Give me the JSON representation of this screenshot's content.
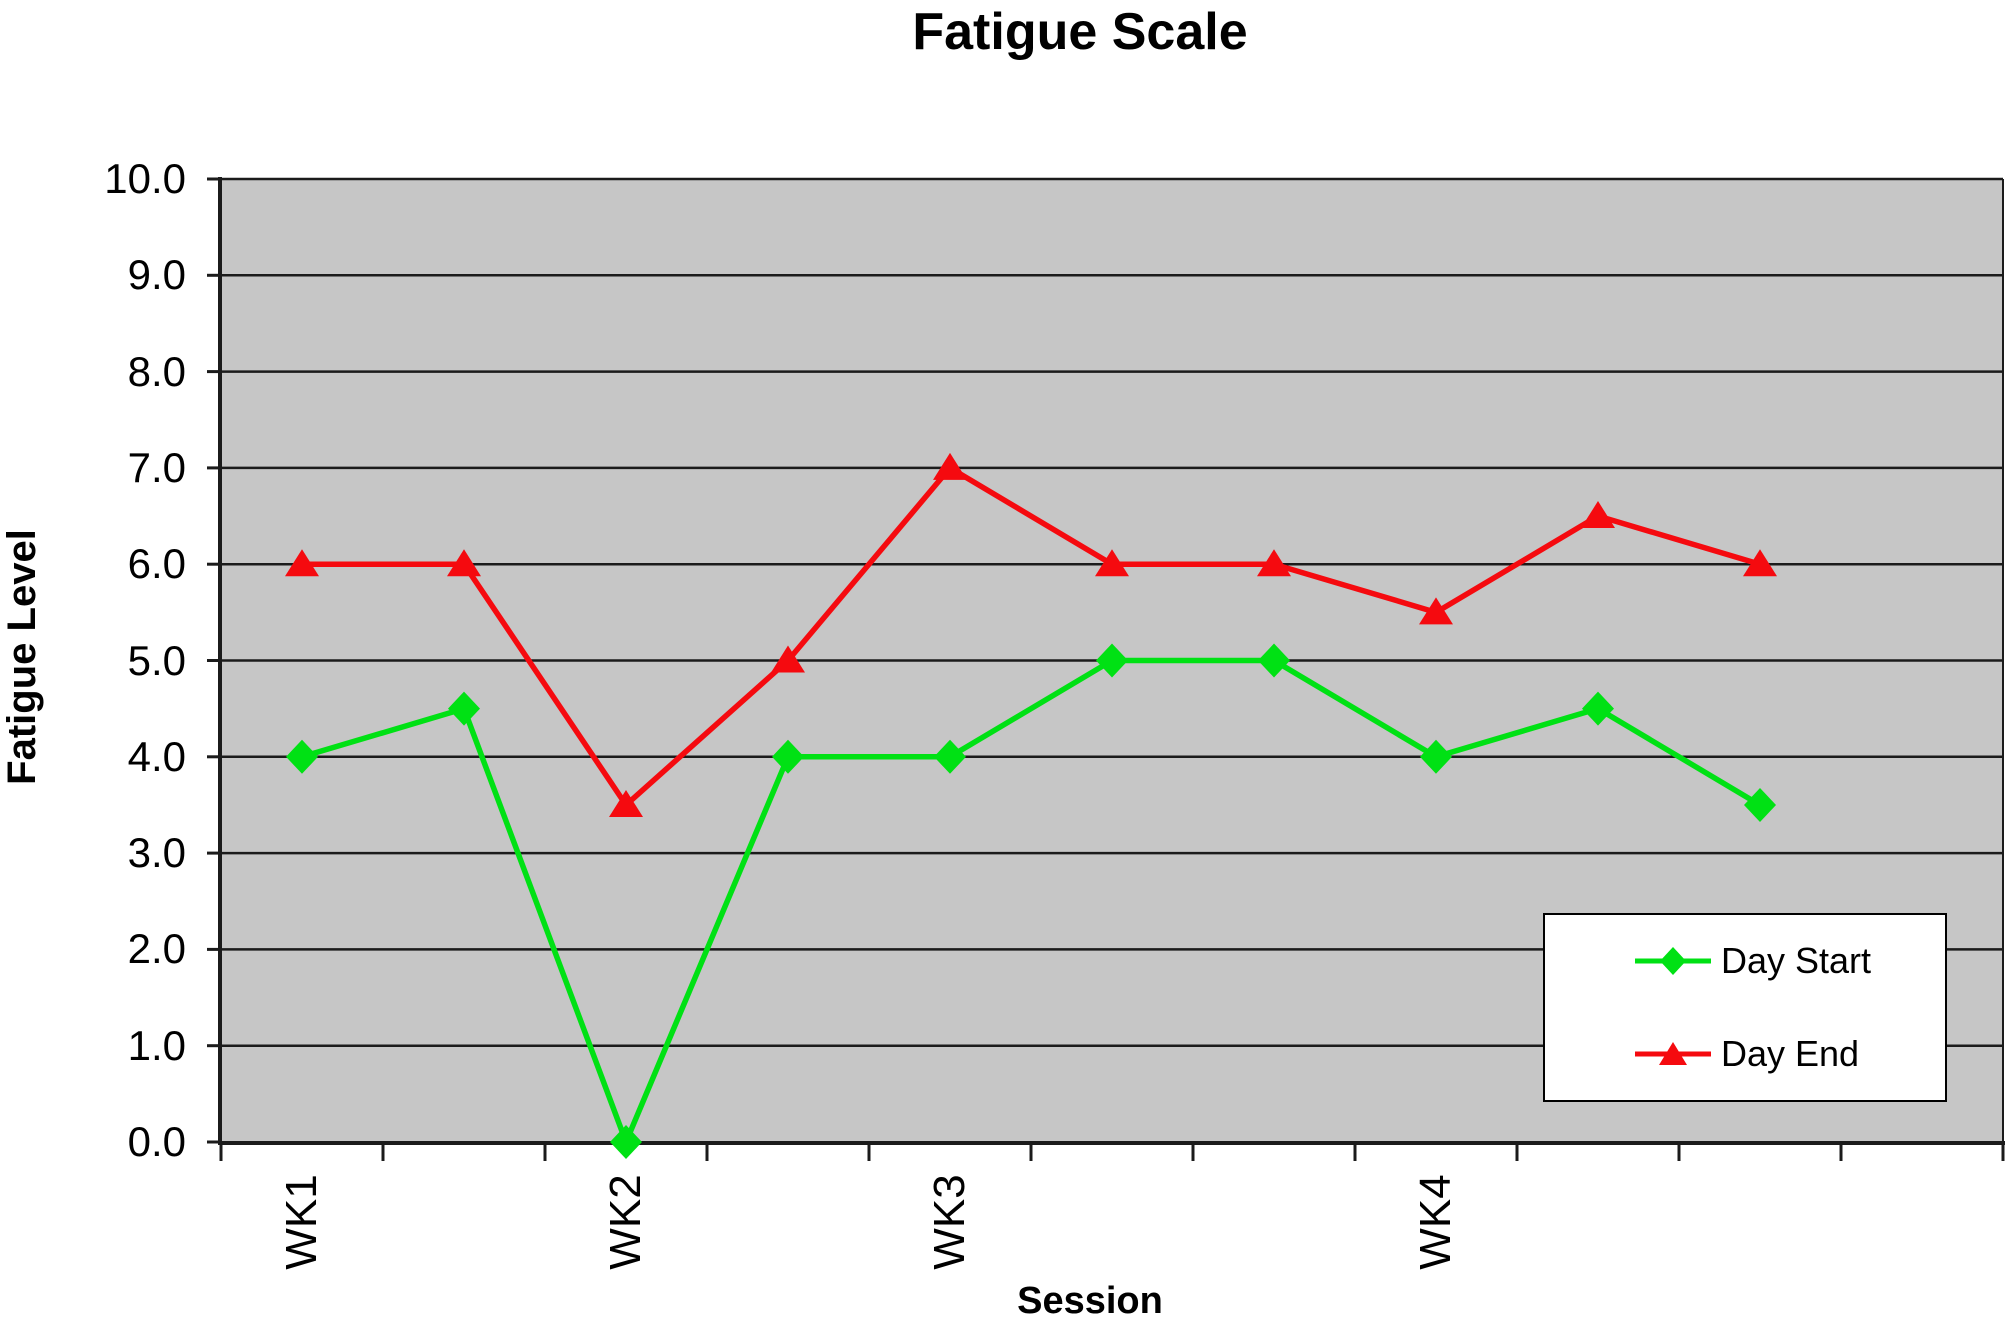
{
  "chart_data": {
    "type": "line",
    "title": "Fatigue Scale",
    "xlabel": "Session",
    "ylabel": "Fatigue Level",
    "ylim": [
      0,
      10
    ],
    "y_tick_labels": [
      "0.0",
      "1.0",
      "2.0",
      "3.0",
      "4.0",
      "5.0",
      "6.0",
      "7.0",
      "8.0",
      "9.0",
      "10.0"
    ],
    "categories": [
      "WK1",
      "",
      "WK2",
      "",
      "WK3",
      "",
      "",
      "WK4",
      "",
      ""
    ],
    "x_slots": 11,
    "grid": "horizontal",
    "plot_bg_color": "#c6c6c6",
    "gridline_color": "#1b1b1b",
    "axis_color": "#1b1b1b",
    "legend_position": "inside-right",
    "series": [
      {
        "name": "Day Start",
        "marker": "diamond",
        "color": "#00e114",
        "values": [
          4.0,
          4.5,
          0.0,
          4.0,
          4.0,
          5.0,
          5.0,
          4.0,
          4.5,
          3.5
        ]
      },
      {
        "name": "Day End",
        "marker": "triangle",
        "color": "#f50a0f",
        "values": [
          6.0,
          6.0,
          3.5,
          5.0,
          7.0,
          6.0,
          6.0,
          5.5,
          6.5,
          6.0
        ]
      }
    ]
  }
}
